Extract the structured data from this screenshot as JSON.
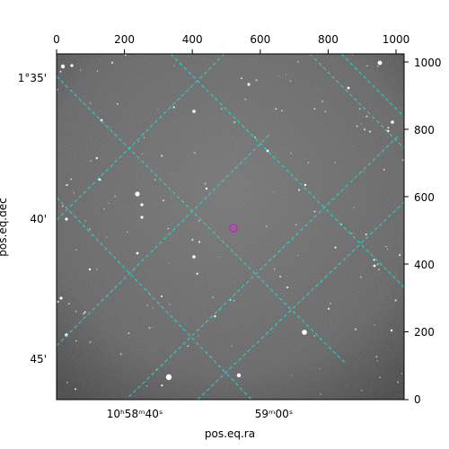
{
  "image": {
    "kind": "astronomical grayscale sky image with world-coordinate grid overlay",
    "background_color": "#6a6a6a",
    "grid_color": "#2ad4d4",
    "marker_color": "#d21ed2",
    "marker_shape": "circle"
  },
  "axes": {
    "top_ticks": [
      "0",
      "200",
      "400",
      "600",
      "800",
      "1000"
    ],
    "right_ticks": [
      "0",
      "200",
      "400",
      "600",
      "800",
      "1000"
    ],
    "left_ticks": [
      "1°35'",
      "40'",
      "45'"
    ],
    "bottom_ticks": [
      "10ʰ58ᵐ40ˢ",
      "59ᵐ00ˢ"
    ],
    "xlabel": "pos.eq.ra",
    "ylabel": "pos.eq.dec"
  }
}
